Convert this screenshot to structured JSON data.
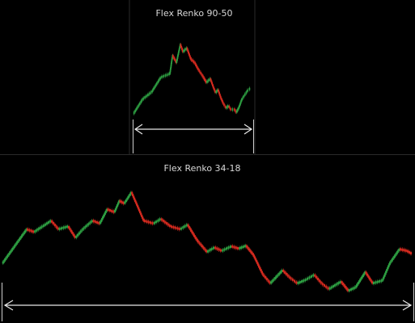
{
  "panels": [
    {
      "title": "Flex Renko 90-50"
    },
    {
      "title": "Flex Renko 34-18"
    }
  ],
  "colors": {
    "up": "#2ea043",
    "down": "#d42a1f",
    "background": "#000000",
    "text": "#d8d8d8"
  },
  "chart_data": [
    {
      "type": "renko",
      "title": "Flex Renko 90-50",
      "path_points": [
        [
          0,
          0
        ],
        [
          7,
          2
        ],
        [
          14,
          3
        ],
        [
          21,
          5
        ],
        [
          28,
          5.5
        ],
        [
          30,
          8
        ],
        [
          33,
          7
        ],
        [
          36,
          9.5
        ],
        [
          38,
          8.5
        ],
        [
          41,
          9
        ],
        [
          44,
          7.5
        ],
        [
          47,
          7
        ],
        [
          50,
          6
        ],
        [
          53,
          5.2
        ],
        [
          56,
          4.3
        ],
        [
          59,
          4.8
        ],
        [
          61,
          3.8
        ],
        [
          63,
          2.9
        ],
        [
          65,
          3.3
        ],
        [
          67,
          2.2
        ],
        [
          69,
          1.4
        ],
        [
          71,
          0.8
        ],
        [
          73,
          1.1
        ],
        [
          75,
          0.5
        ],
        [
          77,
          0.7
        ],
        [
          79,
          0.2
        ],
        [
          81,
          0.9
        ],
        [
          83,
          1.9
        ],
        [
          85,
          2.5
        ],
        [
          88,
          3.3
        ],
        [
          90,
          3.5
        ]
      ],
      "grid": false,
      "legend": "none"
    },
    {
      "type": "renko",
      "title": "Flex Renko 34-18",
      "path_points": [
        [
          0,
          0
        ],
        [
          10,
          6
        ],
        [
          13,
          5.5
        ],
        [
          20,
          7.5
        ],
        [
          23,
          6
        ],
        [
          27,
          6.5
        ],
        [
          30,
          4.5
        ],
        [
          33,
          6
        ],
        [
          37,
          7.5
        ],
        [
          40,
          7
        ],
        [
          43,
          9.5
        ],
        [
          46,
          9
        ],
        [
          48,
          11
        ],
        [
          50,
          10.5
        ],
        [
          53,
          12.5
        ],
        [
          56,
          9.5
        ],
        [
          58,
          7.5
        ],
        [
          62,
          7
        ],
        [
          65,
          7.8
        ],
        [
          69,
          6.5
        ],
        [
          73,
          6
        ],
        [
          76,
          6.8
        ],
        [
          80,
          4
        ],
        [
          84,
          2
        ],
        [
          87,
          2.8
        ],
        [
          90,
          2.2
        ],
        [
          94,
          3
        ],
        [
          97,
          2.6
        ],
        [
          100,
          3.1
        ],
        [
          103,
          1.5
        ],
        [
          107,
          -2
        ],
        [
          110,
          -3.5
        ],
        [
          115,
          -1.2
        ],
        [
          118,
          -2.5
        ],
        [
          121,
          -3.5
        ],
        [
          124,
          -3
        ],
        [
          128,
          -2
        ],
        [
          131,
          -3.5
        ],
        [
          134,
          -4.5
        ],
        [
          139,
          -3.2
        ],
        [
          142,
          -4.8
        ],
        [
          145,
          -4.2
        ],
        [
          149,
          -1.5
        ],
        [
          152,
          -3.5
        ],
        [
          156,
          -3
        ],
        [
          159,
          0
        ],
        [
          163,
          2.5
        ],
        [
          166,
          2.2
        ],
        [
          168,
          1.7
        ]
      ],
      "grid": false,
      "legend": "none"
    }
  ]
}
